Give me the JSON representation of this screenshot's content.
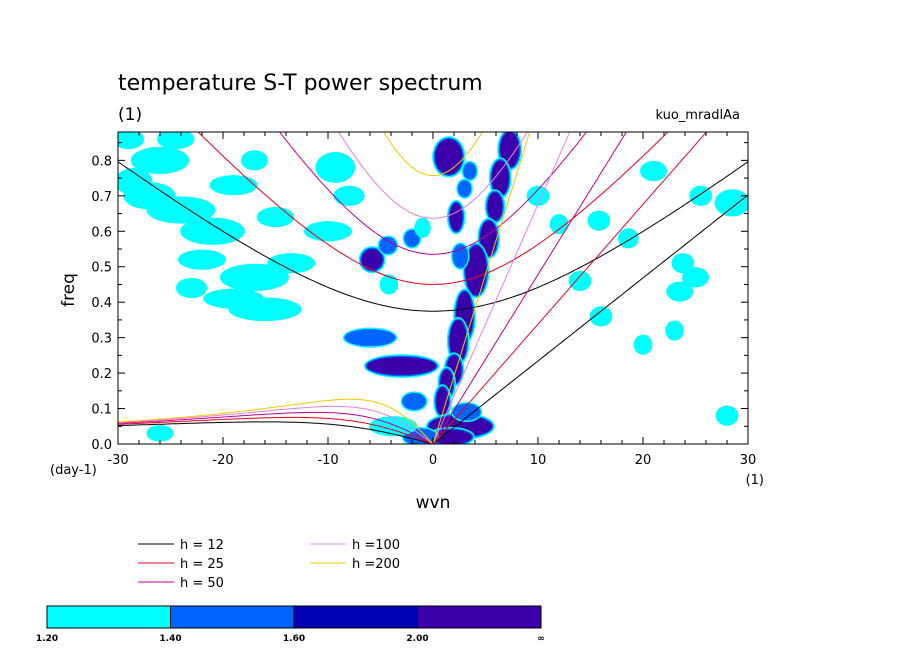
{
  "chart_data": {
    "type": "heatmap",
    "title": "temperature S-T power spectrum",
    "subtitle_left": "(1)",
    "subtitle_right": "kuo_mradlAa",
    "xlabel": "wvn",
    "ylabel": "freq",
    "x_unit": "(1)",
    "y_unit": "(day-1)",
    "xlim": [
      -30,
      30
    ],
    "ylim": [
      0,
      0.88
    ],
    "xticks": [
      -30,
      -20,
      -10,
      0,
      10,
      20,
      30
    ],
    "yticks": [
      0.0,
      0.1,
      0.2,
      0.3,
      0.4,
      0.5,
      0.6,
      0.7,
      0.8
    ],
    "dispersion_curves": [
      {
        "label": "h = 12",
        "h": 12,
        "color": "#000000"
      },
      {
        "label": "h = 25",
        "h": 25,
        "color": "#e8001c"
      },
      {
        "label": "h = 50",
        "h": 50,
        "color": "#c0008c"
      },
      {
        "label": "h =100",
        "h": 100,
        "color": "#e282e2"
      },
      {
        "label": "h =200",
        "h": 200,
        "color": "#f2c800"
      }
    ],
    "colorbar": {
      "levels": [
        "1.20",
        "1.40",
        "1.60",
        "2.00",
        "∞"
      ],
      "colors": [
        "#00ffff",
        "#0064ff",
        "#0000b4",
        "#3c00aa"
      ]
    },
    "contour_blobs": [
      {
        "x": 1.5,
        "y": 0.81,
        "w": 1.3,
        "h": 0.05,
        "level": 3
      },
      {
        "x": 3.5,
        "y": 0.77,
        "w": 0.5,
        "h": 0.02,
        "level": 2
      },
      {
        "x": 7.3,
        "y": 0.83,
        "w": 0.9,
        "h": 0.05,
        "level": 3
      },
      {
        "x": 6.4,
        "y": 0.75,
        "w": 0.8,
        "h": 0.05,
        "level": 3
      },
      {
        "x": 5.9,
        "y": 0.67,
        "w": 0.7,
        "h": 0.04,
        "level": 3
      },
      {
        "x": 5.3,
        "y": 0.58,
        "w": 0.8,
        "h": 0.05,
        "level": 3
      },
      {
        "x": 4.1,
        "y": 0.49,
        "w": 1.0,
        "h": 0.07,
        "level": 3
      },
      {
        "x": 3.0,
        "y": 0.36,
        "w": 0.8,
        "h": 0.07,
        "level": 3
      },
      {
        "x": 2.4,
        "y": 0.29,
        "w": 0.8,
        "h": 0.06,
        "level": 3
      },
      {
        "x": 2.0,
        "y": 0.21,
        "w": 0.7,
        "h": 0.04,
        "level": 3
      },
      {
        "x": 1.3,
        "y": 0.17,
        "w": 0.6,
        "h": 0.04,
        "level": 3
      },
      {
        "x": 0.9,
        "y": 0.12,
        "w": 0.6,
        "h": 0.04,
        "level": 3
      },
      {
        "x": 2.6,
        "y": 0.05,
        "w": 3.0,
        "h": 0.03,
        "level": 3
      },
      {
        "x": 1.7,
        "y": 0.02,
        "w": 2.0,
        "h": 0.02,
        "level": 3
      },
      {
        "x": -1.2,
        "y": 0.02,
        "w": 1.5,
        "h": 0.02,
        "level": 2
      },
      {
        "x": -3.8,
        "y": 0.05,
        "w": 2.0,
        "h": 0.02,
        "level": 1
      },
      {
        "x": -1.8,
        "y": 0.12,
        "w": 1.0,
        "h": 0.02,
        "level": 2
      },
      {
        "x": -3.0,
        "y": 0.22,
        "w": 3.3,
        "h": 0.025,
        "level": 3
      },
      {
        "x": -6.0,
        "y": 0.3,
        "w": 2.3,
        "h": 0.02,
        "level": 2
      },
      {
        "x": -5.8,
        "y": 0.52,
        "w": 1.0,
        "h": 0.03,
        "level": 3
      },
      {
        "x": -4.3,
        "y": 0.56,
        "w": 0.7,
        "h": 0.02,
        "level": 2
      },
      {
        "x": -2.0,
        "y": 0.58,
        "w": 0.6,
        "h": 0.02,
        "level": 2
      },
      {
        "x": -1.0,
        "y": 0.61,
        "w": 0.5,
        "h": 0.02,
        "level": 1
      },
      {
        "x": 2.2,
        "y": 0.64,
        "w": 0.6,
        "h": 0.04,
        "level": 3
      },
      {
        "x": 2.6,
        "y": 0.53,
        "w": 0.6,
        "h": 0.03,
        "level": 2
      },
      {
        "x": 3.0,
        "y": 0.72,
        "w": 0.5,
        "h": 0.02,
        "level": 2
      },
      {
        "x": -8.0,
        "y": 0.7,
        "w": 1.2,
        "h": 0.02,
        "level": 1
      },
      {
        "x": -9.3,
        "y": 0.78,
        "w": 1.6,
        "h": 0.035,
        "level": 1
      },
      {
        "x": -10.0,
        "y": 0.6,
        "w": 2.0,
        "h": 0.02,
        "level": 1
      },
      {
        "x": -13.5,
        "y": 0.51,
        "w": 2.0,
        "h": 0.02,
        "level": 1
      },
      {
        "x": -17.0,
        "y": 0.47,
        "w": 3.0,
        "h": 0.03,
        "level": 1
      },
      {
        "x": -16.0,
        "y": 0.38,
        "w": 3.2,
        "h": 0.025,
        "level": 1
      },
      {
        "x": -19.0,
        "y": 0.41,
        "w": 2.6,
        "h": 0.02,
        "level": 1
      },
      {
        "x": -21.0,
        "y": 0.6,
        "w": 2.8,
        "h": 0.03,
        "level": 1
      },
      {
        "x": -24.0,
        "y": 0.66,
        "w": 3.0,
        "h": 0.03,
        "level": 1
      },
      {
        "x": -27.0,
        "y": 0.7,
        "w": 2.2,
        "h": 0.03,
        "level": 1
      },
      {
        "x": -28.5,
        "y": 0.74,
        "w": 1.5,
        "h": 0.03,
        "level": 1
      },
      {
        "x": -26.0,
        "y": 0.8,
        "w": 2.5,
        "h": 0.03,
        "level": 1
      },
      {
        "x": -29.0,
        "y": 0.86,
        "w": 1.2,
        "h": 0.02,
        "level": 1
      },
      {
        "x": -24.5,
        "y": 0.86,
        "w": 1.5,
        "h": 0.02,
        "level": 1
      },
      {
        "x": -19.0,
        "y": 0.73,
        "w": 2.0,
        "h": 0.02,
        "level": 1
      },
      {
        "x": -22.0,
        "y": 0.52,
        "w": 2.0,
        "h": 0.02,
        "level": 1
      },
      {
        "x": -23.0,
        "y": 0.44,
        "w": 1.2,
        "h": 0.02,
        "level": 1
      },
      {
        "x": -15.0,
        "y": 0.64,
        "w": 1.5,
        "h": 0.02,
        "level": 1
      },
      {
        "x": -17.0,
        "y": 0.8,
        "w": 1.0,
        "h": 0.02,
        "level": 1
      },
      {
        "x": 28.5,
        "y": 0.68,
        "w": 1.4,
        "h": 0.03,
        "level": 1
      },
      {
        "x": 23.5,
        "y": 0.43,
        "w": 1.0,
        "h": 0.02,
        "level": 1
      },
      {
        "x": 25.0,
        "y": 0.47,
        "w": 1.0,
        "h": 0.02,
        "level": 1
      },
      {
        "x": 28.0,
        "y": 0.08,
        "w": 0.8,
        "h": 0.02,
        "level": 1
      },
      {
        "x": 21.0,
        "y": 0.77,
        "w": 1.0,
        "h": 0.02,
        "level": 1
      },
      {
        "x": 16.0,
        "y": 0.36,
        "w": 0.8,
        "h": 0.02,
        "level": 1
      },
      {
        "x": 23.8,
        "y": 0.51,
        "w": 0.8,
        "h": 0.02,
        "level": 1
      },
      {
        "x": 15.8,
        "y": 0.63,
        "w": 0.8,
        "h": 0.02,
        "level": 1
      },
      {
        "x": 25.5,
        "y": 0.7,
        "w": 0.8,
        "h": 0.02,
        "level": 1
      },
      {
        "x": 18.6,
        "y": 0.58,
        "w": 0.7,
        "h": 0.02,
        "level": 1
      },
      {
        "x": 10.0,
        "y": 0.7,
        "w": 0.8,
        "h": 0.02,
        "level": 1
      },
      {
        "x": 20.0,
        "y": 0.28,
        "w": 0.6,
        "h": 0.02,
        "level": 1
      },
      {
        "x": 23.0,
        "y": 0.32,
        "w": 0.6,
        "h": 0.02,
        "level": 1
      },
      {
        "x": 14.0,
        "y": 0.46,
        "w": 0.8,
        "h": 0.02,
        "level": 1
      },
      {
        "x": 12.0,
        "y": 0.62,
        "w": 0.6,
        "h": 0.02,
        "level": 1
      },
      {
        "x": -4.2,
        "y": 0.45,
        "w": 0.6,
        "h": 0.02,
        "level": 1
      },
      {
        "x": 3.2,
        "y": 0.09,
        "w": 1.2,
        "h": 0.02,
        "level": 2
      },
      {
        "x": -26.0,
        "y": 0.03,
        "w": 1.0,
        "h": 0.015,
        "level": 1
      }
    ]
  }
}
